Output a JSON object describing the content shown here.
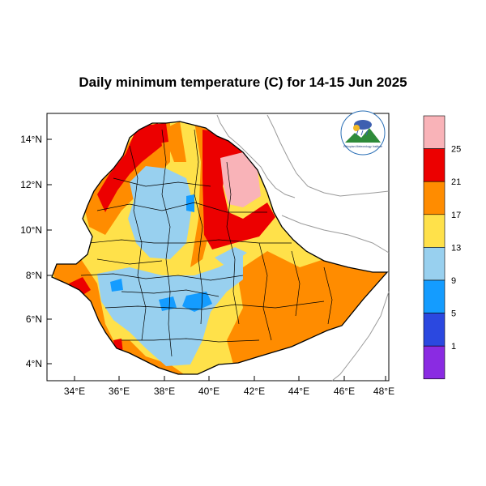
{
  "title": "Daily minimum temperature (C) for 14-15 Jun 2025",
  "map": {
    "lat_ticks": [
      "4°N",
      "6°N",
      "8°N",
      "10°N",
      "12°N",
      "14°N"
    ],
    "lon_ticks": [
      "34°E",
      "36°E",
      "38°E",
      "40°E",
      "42°E",
      "44°E",
      "46°E",
      "48°E"
    ],
    "lat_range": [
      3.2,
      15.0
    ],
    "lon_range": [
      33.0,
      48.2
    ]
  },
  "colorbar": {
    "boundaries": [
      "25",
      "21",
      "17",
      "13",
      "9",
      "5",
      "1"
    ],
    "colors": [
      "#f9b3b8",
      "#ec0000",
      "#ff8c00",
      "#ffe14a",
      "#98d0ef",
      "#149cff",
      "#2b48e0",
      "#8a2be2"
    ]
  },
  "logo": {
    "text": "Ethiopian Meteorology Institute"
  }
}
